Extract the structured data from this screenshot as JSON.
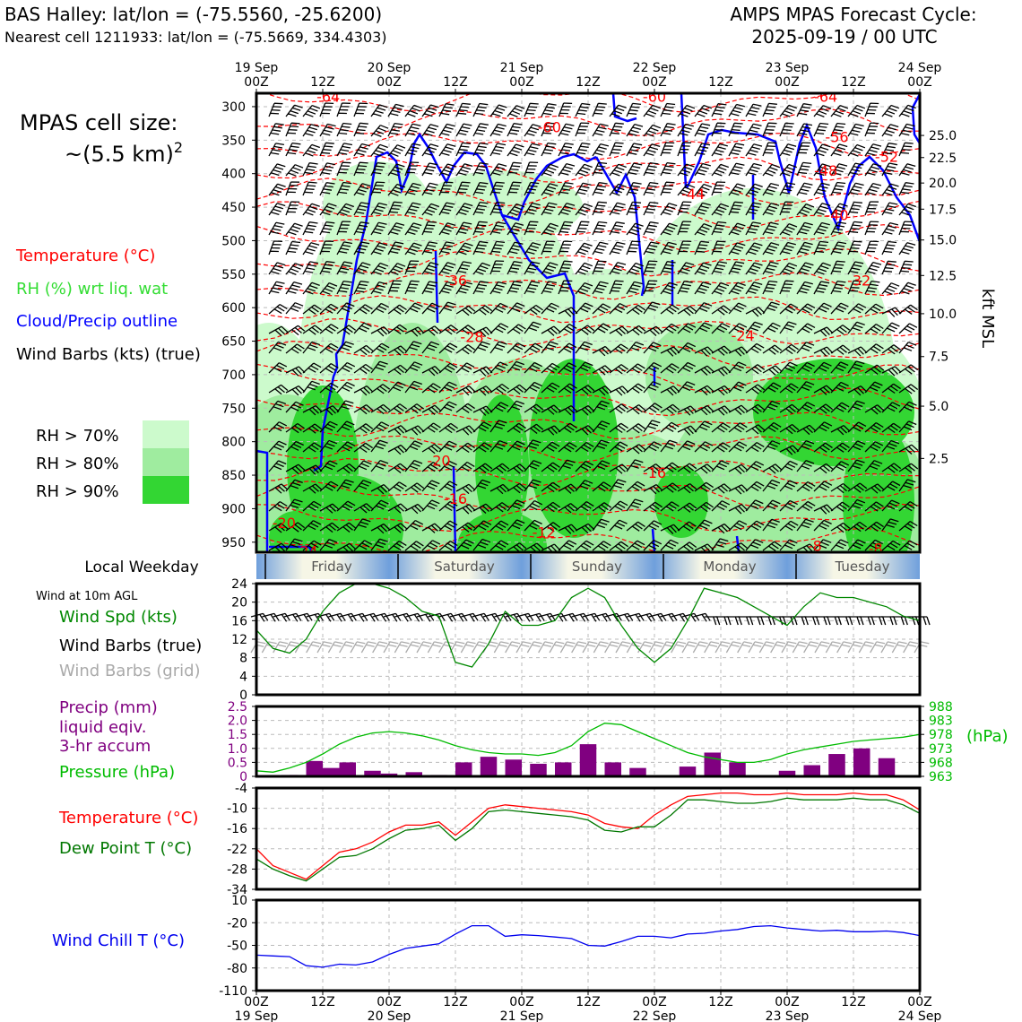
{
  "header": {
    "station_line": "BAS Halley: lat/lon = (-75.5560, -25.6200)",
    "cell_line": "Nearest cell 1211933: lat/lon = (-75.5669, 334.4303)",
    "cycle_line1": "AMPS MPAS Forecast Cycle:",
    "cycle_line2": "2025-09-19 / 00 UTC"
  },
  "legend": {
    "cell_size_label": "MPAS cell size:",
    "cell_size_value": "~(5.5 km)",
    "cell_size_exp": "2",
    "temperature": "Temperature (°C)",
    "rh": "RH (%) wrt liq. wat",
    "cloud": "Cloud/Precip outline",
    "wind_barbs": "Wind Barbs (kts) (true)",
    "rh70": "RH > 70%",
    "rh80": "RH > 80%",
    "rh90": "RH > 90%",
    "weekday_title": "Local Weekday",
    "wind10m": "Wind at 10m AGL",
    "wind_spd": "Wind Spd (kts)",
    "barbs_true": "Wind Barbs (true)",
    "barbs_grid": "Wind Barbs (grid)",
    "precip1": "Precip (mm)",
    "precip2": "liquid eqiv.",
    "precip3": "3-hr accum",
    "pressure": "Pressure (hPa)",
    "hpa_unit": "(hPa)",
    "temp": "Temperature (°C)",
    "dewpoint": "Dew Point T (°C)",
    "windchill": "Wind Chill T (°C)"
  },
  "colors": {
    "temperature": "#ff0000",
    "rh_label": "#33dd33",
    "cloud": "#0000ff",
    "rh70": "#ccfacc",
    "rh80": "#9fec9f",
    "rh90": "#33d633",
    "wind_speed": "#008800",
    "grid_barb": "#aaaaaa",
    "precip": "#800080",
    "pressure": "#00bb00",
    "dewpoint": "#007700",
    "windchill": "#0000ee"
  },
  "time_axis": {
    "top_tick_labels": [
      [
        "19 Sep",
        "00Z"
      ],
      [
        "",
        "12Z"
      ],
      [
        "20 Sep",
        "00Z"
      ],
      [
        "",
        "12Z"
      ],
      [
        "21 Sep",
        "00Z"
      ],
      [
        "",
        "12Z"
      ],
      [
        "22 Sep",
        "00Z"
      ],
      [
        "",
        "12Z"
      ],
      [
        "23 Sep",
        "00Z"
      ],
      [
        "",
        "12Z"
      ],
      [
        "24 Sep",
        "00Z"
      ]
    ],
    "bottom_tick_labels": [
      [
        "00Z",
        "19 Sep"
      ],
      [
        "12Z",
        ""
      ],
      [
        "00Z",
        "20 Sep"
      ],
      [
        "12Z",
        ""
      ],
      [
        "00Z",
        "21 Sep"
      ],
      [
        "12Z",
        ""
      ],
      [
        "00Z",
        "22 Sep"
      ],
      [
        "12Z",
        ""
      ],
      [
        "00Z",
        "23 Sep"
      ],
      [
        "12Z",
        ""
      ],
      [
        "00Z",
        "24 Sep"
      ]
    ]
  },
  "chart_data": [
    {
      "type": "heatmap",
      "panel": "vertical cross-section",
      "x_hours": [
        0,
        120
      ],
      "y_pressure_hPa": [
        965,
        280
      ],
      "y_tick_labels": [
        "300",
        "350",
        "400",
        "450",
        "500",
        "550",
        "600",
        "650",
        "700",
        "750",
        "800",
        "850",
        "900",
        "950"
      ],
      "right_axis_label": "kft MSL",
      "right_tick_labels": [
        "25.0",
        "22.5",
        "20.0",
        "17.5",
        "15.0",
        "12.5",
        "10.0",
        "7.5",
        "5.0",
        "2.5"
      ],
      "right_tick_pressures": [
        343,
        376,
        414,
        453,
        499,
        552,
        609,
        673,
        747,
        825
      ],
      "temperature_contour_labels": [
        {
          "text": "-64",
          "t": 13,
          "p": 285
        },
        {
          "text": "-60",
          "t": 53,
          "p": 330
        },
        {
          "text": "-60",
          "t": 72,
          "p": 285
        },
        {
          "text": "-64",
          "t": 103,
          "p": 285
        },
        {
          "text": "-56",
          "t": 105,
          "p": 345
        },
        {
          "text": "-52",
          "t": 114,
          "p": 374
        },
        {
          "text": "-48",
          "t": 103,
          "p": 395
        },
        {
          "text": "-44",
          "t": 79,
          "p": 430
        },
        {
          "text": "-40",
          "t": 105,
          "p": 461
        },
        {
          "text": "-36",
          "t": 36,
          "p": 559
        },
        {
          "text": "-32",
          "t": 109,
          "p": 559
        },
        {
          "text": "-28",
          "t": 39,
          "p": 643
        },
        {
          "text": "-24",
          "t": 88,
          "p": 641
        },
        {
          "text": "-20",
          "t": 33,
          "p": 828
        },
        {
          "text": "-16",
          "t": 72,
          "p": 846
        },
        {
          "text": "-16",
          "t": 36,
          "p": 885
        },
        {
          "text": "-20",
          "t": 5,
          "p": 921
        },
        {
          "text": "-24",
          "t": 9,
          "p": 963
        },
        {
          "text": "-12",
          "t": 52,
          "p": 935
        },
        {
          "text": "-8",
          "t": 101,
          "p": 955
        },
        {
          "text": "-8",
          "t": 112,
          "p": 959
        }
      ],
      "rh_bands": [
        "RH > 70%",
        "RH > 80%",
        "RH > 90%"
      ]
    },
    {
      "type": "line",
      "panel": "10 m wind",
      "series": [
        {
          "name": "Wind Spd (kts)",
          "x": [
            0,
            3,
            6,
            9,
            12,
            15,
            18,
            21,
            24,
            27,
            30,
            33,
            36,
            39,
            42,
            45,
            48,
            51,
            54,
            57,
            60,
            63,
            66,
            69,
            72,
            75,
            78,
            81,
            84,
            87,
            90,
            93,
            96,
            99,
            102,
            105,
            108,
            111,
            114,
            117,
            120
          ],
          "values": [
            14,
            10,
            9,
            12,
            18,
            22,
            24,
            24,
            23,
            21,
            18,
            17,
            7,
            6,
            11,
            18,
            15,
            15,
            16,
            21,
            23,
            21,
            15,
            10,
            7,
            10,
            16,
            23,
            22,
            21,
            19,
            17,
            15,
            19,
            22,
            21,
            21,
            20,
            19,
            17,
            16
          ]
        }
      ],
      "ylim": [
        0,
        24
      ],
      "y_tick_labels": [
        "0",
        "4",
        "8",
        "12",
        "16",
        "20",
        "24"
      ]
    },
    {
      "type": "bar",
      "panel": "precipitation and pressure",
      "series": [
        {
          "name": "Precip (mm)",
          "x": [
            6,
            7.5,
            10.5,
            13.5,
            16.5,
            21,
            24,
            28.5,
            33,
            37.5,
            42,
            46.5,
            51,
            55.5,
            60,
            64.5,
            69,
            73.5,
            78,
            82.5,
            87,
            91.5,
            96,
            100.5,
            105,
            109.5,
            114
          ],
          "values": [
            0.05,
            0.05,
            0.55,
            0.3,
            0.5,
            0.2,
            0.1,
            0.15,
            0.05,
            0.5,
            0.7,
            0.6,
            0.45,
            0.5,
            1.15,
            0.5,
            0.3,
            0,
            0.35,
            0.85,
            0.5,
            0,
            0.2,
            0.4,
            0.8,
            1.0,
            0.65
          ]
        },
        {
          "name": "Pressure (hPa)",
          "x": [
            0,
            3,
            6,
            9,
            12,
            15,
            18,
            21,
            24,
            27,
            30,
            33,
            36,
            39,
            42,
            45,
            48,
            51,
            54,
            57,
            60,
            63,
            66,
            69,
            72,
            75,
            78,
            81,
            84,
            87,
            90,
            93,
            96,
            99,
            102,
            105,
            108,
            111,
            114,
            117,
            120
          ],
          "values": [
            965,
            964.5,
            966,
            968,
            971,
            974.5,
            977,
            978.5,
            979,
            978.5,
            977.5,
            976,
            974,
            972.5,
            971.5,
            971,
            971,
            970.5,
            971.5,
            974,
            979,
            982,
            981.5,
            979,
            976.5,
            974,
            971.5,
            970,
            969,
            968,
            968,
            969,
            971,
            972.5,
            973.5,
            974.5,
            975.5,
            976,
            976.5,
            977,
            978
          ]
        }
      ],
      "precip_ylim": [
        0,
        2.5
      ],
      "precip_tick_labels": [
        "0",
        "0.5",
        "1.0",
        "1.5",
        "2.0",
        "2.5"
      ],
      "pressure_ylim": [
        963,
        988
      ],
      "pressure_tick_labels": [
        "963",
        "968",
        "973",
        "978",
        "983",
        "988"
      ]
    },
    {
      "type": "line",
      "panel": "temperature",
      "series": [
        {
          "name": "Temperature (°C)",
          "x": [
            0,
            3,
            6,
            9,
            12,
            15,
            18,
            21,
            24,
            27,
            30,
            33,
            36,
            39,
            42,
            45,
            48,
            51,
            54,
            57,
            60,
            63,
            66,
            69,
            72,
            75,
            78,
            81,
            84,
            87,
            90,
            93,
            96,
            99,
            102,
            105,
            108,
            111,
            114,
            117,
            120
          ],
          "values": [
            -22,
            -27,
            -29,
            -31,
            -27,
            -23,
            -22,
            -20,
            -17,
            -15,
            -15,
            -14,
            -18,
            -14,
            -10,
            -9,
            -9.5,
            -10,
            -10.5,
            -11,
            -12,
            -14.5,
            -15.5,
            -16,
            -12,
            -9,
            -6.5,
            -6,
            -5.5,
            -5.5,
            -6,
            -6,
            -5.5,
            -6,
            -6,
            -6,
            -5.5,
            -6,
            -6,
            -7.5,
            -10.5
          ]
        },
        {
          "name": "Dew Point T (°C)",
          "x": [
            0,
            3,
            6,
            9,
            12,
            15,
            18,
            21,
            24,
            27,
            30,
            33,
            36,
            39,
            42,
            45,
            48,
            51,
            54,
            57,
            60,
            63,
            66,
            69,
            72,
            75,
            78,
            81,
            84,
            87,
            90,
            93,
            96,
            99,
            102,
            105,
            108,
            111,
            114,
            117,
            120
          ],
          "values": [
            -25,
            -28,
            -30,
            -31.5,
            -28,
            -24.5,
            -24,
            -22,
            -19,
            -16.5,
            -16,
            -15,
            -19.5,
            -16,
            -11,
            -10.5,
            -11,
            -11.5,
            -12,
            -12.5,
            -13.5,
            -16.5,
            -17,
            -15.5,
            -15.5,
            -12,
            -7.5,
            -7.5,
            -8,
            -8.5,
            -8.5,
            -8,
            -7,
            -7.5,
            -7.5,
            -7.5,
            -7,
            -7.5,
            -7.5,
            -9,
            -11.5
          ]
        }
      ],
      "ylim": [
        -34,
        -4
      ],
      "y_tick_labels": [
        "-34",
        "-28",
        "-22",
        "-16",
        "-10",
        "-4"
      ]
    },
    {
      "type": "line",
      "panel": "wind chill",
      "series": [
        {
          "name": "Wind Chill T (°C)",
          "x": [
            0,
            3,
            6,
            9,
            12,
            15,
            18,
            21,
            24,
            27,
            30,
            33,
            36,
            39,
            42,
            45,
            48,
            51,
            54,
            57,
            60,
            63,
            66,
            69,
            72,
            75,
            78,
            81,
            84,
            87,
            90,
            93,
            96,
            99,
            102,
            105,
            108,
            111,
            114,
            117,
            120
          ],
          "values": [
            -63,
            -64,
            -65,
            -77,
            -79,
            -75,
            -76,
            -72,
            -62,
            -54,
            -51,
            -48,
            -35,
            -24,
            -24,
            -38,
            -36,
            -37,
            -39,
            -41,
            -50,
            -51,
            -45,
            -38,
            -38,
            -40,
            -35,
            -34,
            -31,
            -29,
            -25,
            -24,
            -27,
            -29,
            -31,
            -30,
            -32,
            -32,
            -31,
            -33,
            -37
          ]
        }
      ],
      "ylim": [
        -110,
        10
      ],
      "y_tick_labels": [
        "-110",
        "-80",
        "-50",
        "-20",
        "10"
      ]
    }
  ],
  "weekdays": [
    {
      "label": "Friday",
      "start_hour": 0,
      "end_hour": 24
    },
    {
      "label": "Saturday",
      "start_hour": 24,
      "end_hour": 48
    },
    {
      "label": "Sunday",
      "start_hour": 48,
      "end_hour": 72
    },
    {
      "label": "Monday",
      "start_hour": 72,
      "end_hour": 96
    },
    {
      "label": "Tuesday",
      "start_hour": 96,
      "end_hour": 120
    }
  ]
}
